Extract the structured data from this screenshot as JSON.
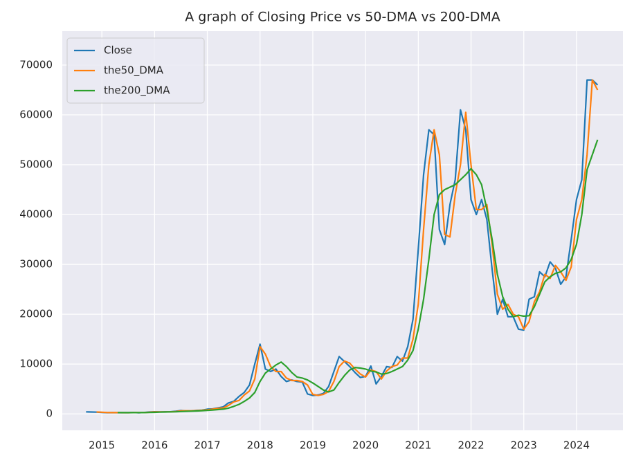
{
  "chart_data": {
    "type": "line",
    "title": "A graph of Closing Price vs 50-DMA vs 200-DMA",
    "x": [
      2014.7,
      2014.8,
      2014.9,
      2015.0,
      2015.1,
      2015.2,
      2015.3,
      2015.4,
      2015.5,
      2015.6,
      2015.7,
      2015.8,
      2015.9,
      2016.0,
      2016.1,
      2016.2,
      2016.3,
      2016.4,
      2016.5,
      2016.6,
      2016.7,
      2016.8,
      2016.9,
      2017.0,
      2017.1,
      2017.2,
      2017.3,
      2017.4,
      2017.5,
      2017.6,
      2017.7,
      2017.8,
      2017.9,
      2018.0,
      2018.1,
      2018.2,
      2018.3,
      2018.4,
      2018.5,
      2018.6,
      2018.7,
      2018.8,
      2018.9,
      2019.0,
      2019.1,
      2019.2,
      2019.3,
      2019.4,
      2019.5,
      2019.6,
      2019.7,
      2019.8,
      2019.9,
      2020.0,
      2020.1,
      2020.2,
      2020.3,
      2020.4,
      2020.5,
      2020.6,
      2020.7,
      2020.8,
      2020.9,
      2021.0,
      2021.1,
      2021.2,
      2021.3,
      2021.4,
      2021.5,
      2021.6,
      2021.7,
      2021.8,
      2021.9,
      2022.0,
      2022.1,
      2022.2,
      2022.3,
      2022.4,
      2022.5,
      2022.6,
      2022.7,
      2022.8,
      2022.9,
      2023.0,
      2023.1,
      2023.2,
      2023.3,
      2023.4,
      2023.5,
      2023.6,
      2023.7,
      2023.8,
      2023.9,
      2024.0,
      2024.1,
      2024.2,
      2024.3,
      2024.4
    ],
    "series": [
      {
        "name": "Close",
        "color": "#1f77b4",
        "values": [
          400,
          380,
          350,
          300,
          240,
          260,
          240,
          235,
          260,
          280,
          230,
          280,
          380,
          430,
          400,
          420,
          440,
          530,
          670,
          580,
          610,
          700,
          750,
          950,
          1000,
          1200,
          1400,
          2200,
          2500,
          3500,
          4300,
          5800,
          10000,
          14000,
          9000,
          8500,
          9000,
          7500,
          6500,
          6800,
          6500,
          6400,
          4000,
          3700,
          3800,
          4100,
          5500,
          8500,
          11500,
          10500,
          9500,
          8300,
          7300,
          7500,
          9600,
          6000,
          7500,
          9500,
          9300,
          11500,
          10600,
          13500,
          19000,
          33000,
          48000,
          57000,
          56000,
          37000,
          34000,
          42000,
          47000,
          61000,
          57000,
          43000,
          40000,
          43000,
          39000,
          29000,
          20000,
          23000,
          19500,
          19500,
          17000,
          16800,
          23000,
          23500,
          28500,
          27500,
          30500,
          29200,
          26000,
          27500,
          35000,
          43000,
          47000,
          67000,
          67000,
          66000
        ]
      },
      {
        "name": "the50_DMA",
        "color": "#ff7f0e",
        "values": [
          null,
          null,
          380,
          340,
          270,
          250,
          250,
          240,
          245,
          265,
          260,
          250,
          320,
          400,
          410,
          410,
          425,
          460,
          600,
          630,
          600,
          650,
          720,
          820,
          950,
          1100,
          1200,
          1700,
          2400,
          2700,
          3800,
          4600,
          7000,
          13500,
          12000,
          9500,
          8500,
          8500,
          7200,
          6700,
          6700,
          6500,
          5800,
          3900,
          3700,
          3900,
          4500,
          6500,
          9500,
          10600,
          10200,
          9000,
          8000,
          7400,
          8800,
          8500,
          7000,
          8600,
          9500,
          9800,
          11200,
          11200,
          15000,
          22000,
          37000,
          50000,
          57000,
          52000,
          36000,
          35500,
          44000,
          50000,
          60500,
          50000,
          41000,
          41000,
          42000,
          34000,
          24000,
          21000,
          22000,
          20000,
          19500,
          17000,
          18500,
          22500,
          24500,
          28000,
          27200,
          29800,
          28500,
          26800,
          29500,
          39000,
          43000,
          52000,
          67000,
          65000
        ]
      },
      {
        "name": "the200_DMA",
        "color": "#2ca02c",
        "values": [
          null,
          null,
          null,
          null,
          null,
          null,
          260,
          250,
          245,
          250,
          255,
          255,
          275,
          310,
          350,
          380,
          400,
          420,
          470,
          520,
          550,
          590,
          640,
          700,
          770,
          860,
          950,
          1150,
          1500,
          1900,
          2500,
          3200,
          4300,
          6500,
          8200,
          9000,
          9800,
          10400,
          9500,
          8300,
          7400,
          7200,
          6800,
          6200,
          5500,
          4800,
          4400,
          4800,
          6300,
          7700,
          8800,
          9300,
          9200,
          9000,
          8600,
          8400,
          8000,
          8100,
          8500,
          9000,
          9500,
          10800,
          12700,
          17000,
          23000,
          31000,
          40000,
          44000,
          45000,
          45500,
          46000,
          47000,
          48000,
          49200,
          48000,
          46000,
          41000,
          35000,
          28000,
          23500,
          21000,
          19500,
          19800,
          19600,
          19700,
          21500,
          24000,
          26500,
          27500,
          28200,
          28500,
          29300,
          31000,
          34000,
          40000,
          49000,
          52000,
          55000
        ]
      }
    ],
    "xlim": [
      2014.25,
      2024.88
    ],
    "xticks": [
      2015,
      2016,
      2017,
      2018,
      2019,
      2020,
      2021,
      2022,
      2023,
      2024
    ],
    "ylim": [
      -3300,
      76800
    ],
    "yticks": [
      0,
      10000,
      20000,
      30000,
      40000,
      50000,
      60000,
      70000
    ],
    "grid": true,
    "legend": "upper left"
  }
}
